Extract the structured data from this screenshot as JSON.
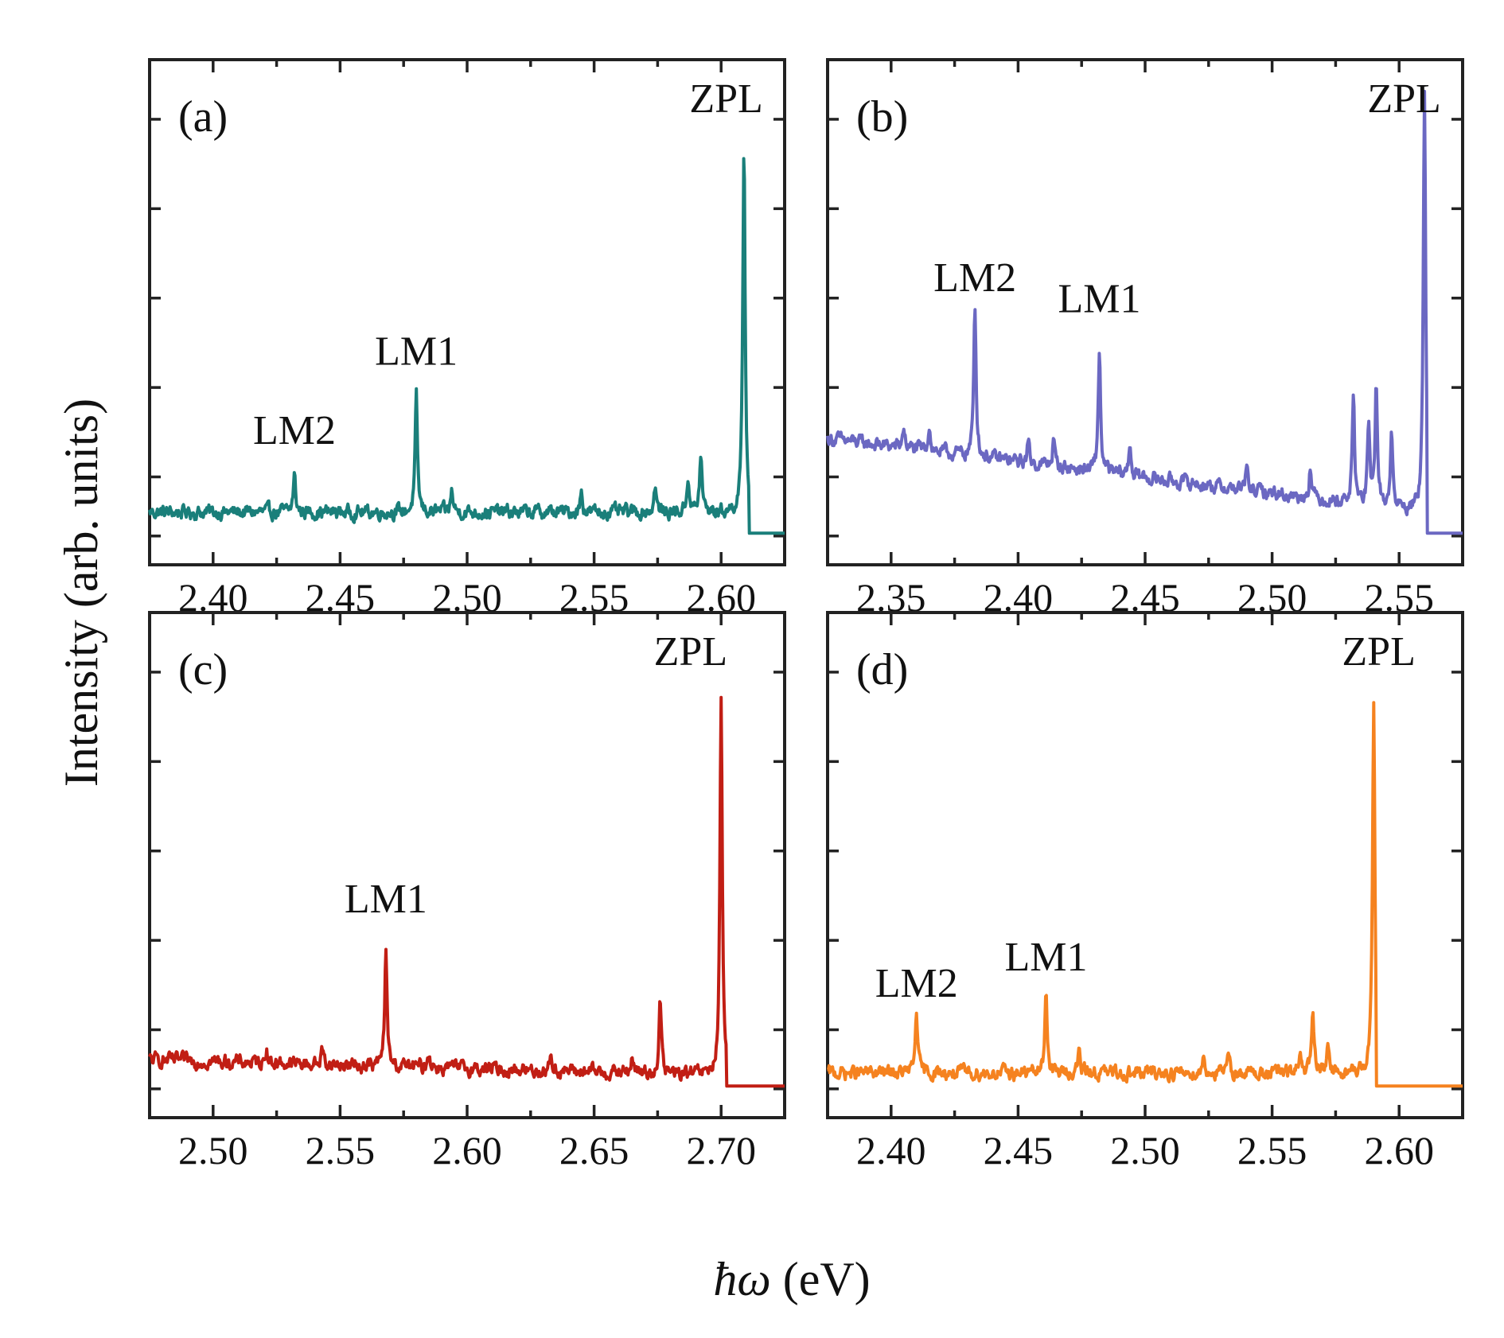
{
  "figure": {
    "ylabel": "Intensity (arb. units)",
    "xlabel_symbol": "ħω",
    "xlabel_unit": " (eV)"
  },
  "chart_data": [
    {
      "type": "line",
      "panel": "(a)",
      "color": "#1a7f7a",
      "xlim": [
        2.375,
        2.625
      ],
      "ylim": [
        -0.06,
        0.9
      ],
      "xticks": [
        "2.40",
        "2.45",
        "2.50",
        "2.55",
        "2.60"
      ],
      "xtick_values": [
        2.4,
        2.45,
        2.5,
        2.55,
        2.6
      ],
      "baseline": {
        "start": 0.04,
        "end": 0.04
      },
      "cutoff": 2.611,
      "peaks": [
        {
          "x": 2.432,
          "h": 0.07
        },
        {
          "x": 2.48,
          "h": 0.215
        },
        {
          "x": 2.494,
          "h": 0.04
        },
        {
          "x": 2.545,
          "h": 0.04
        },
        {
          "x": 2.574,
          "h": 0.05
        },
        {
          "x": 2.587,
          "h": 0.07
        },
        {
          "x": 2.592,
          "h": 0.11
        },
        {
          "x": 2.609,
          "h": 0.7
        }
      ],
      "annotations": [
        {
          "text": "LM2",
          "x": 2.432,
          "y": 0.17
        },
        {
          "text": "LM1",
          "x": 2.48,
          "y": 0.32
        },
        {
          "text": "ZPL",
          "x": 2.602,
          "y": 0.8
        }
      ]
    },
    {
      "type": "line",
      "panel": "(b)",
      "color": "#6b68c2",
      "xlim": [
        2.325,
        2.575
      ],
      "ylim": [
        -0.06,
        0.9
      ],
      "xticks": [
        "2.35",
        "2.40",
        "2.45",
        "2.50",
        "2.55"
      ],
      "xtick_values": [
        2.35,
        2.4,
        2.45,
        2.5,
        2.55
      ],
      "baseline": {
        "start": 0.18,
        "end": 0.04
      },
      "cutoff": 2.561,
      "peaks": [
        {
          "x": 2.355,
          "h": 0.04
        },
        {
          "x": 2.365,
          "h": 0.05
        },
        {
          "x": 2.383,
          "h": 0.29
        },
        {
          "x": 2.404,
          "h": 0.04
        },
        {
          "x": 2.414,
          "h": 0.05
        },
        {
          "x": 2.432,
          "h": 0.23
        },
        {
          "x": 2.444,
          "h": 0.06
        },
        {
          "x": 2.49,
          "h": 0.04
        },
        {
          "x": 2.515,
          "h": 0.06
        },
        {
          "x": 2.532,
          "h": 0.2
        },
        {
          "x": 2.538,
          "h": 0.14
        },
        {
          "x": 2.541,
          "h": 0.23
        },
        {
          "x": 2.547,
          "h": 0.14
        },
        {
          "x": 2.56,
          "h": 0.81
        }
      ],
      "annotations": [
        {
          "text": "LM2",
          "x": 2.383,
          "y": 0.46
        },
        {
          "text": "LM1",
          "x": 2.432,
          "y": 0.42
        },
        {
          "text": "ZPL",
          "x": 2.552,
          "y": 0.8
        }
      ]
    },
    {
      "type": "line",
      "panel": "(c)",
      "color": "#c11e14",
      "xlim": [
        2.475,
        2.725
      ],
      "ylim": [
        -0.06,
        0.9
      ],
      "xticks": [
        "2.50",
        "2.55",
        "2.60",
        "2.65",
        "2.70"
      ],
      "xtick_values": [
        2.5,
        2.55,
        2.6,
        2.65,
        2.7
      ],
      "baseline": {
        "start": 0.05,
        "end": 0.02
      },
      "cutoff": 2.702,
      "peaks": [
        {
          "x": 2.521,
          "h": 0.03
        },
        {
          "x": 2.543,
          "h": 0.03
        },
        {
          "x": 2.568,
          "h": 0.22
        },
        {
          "x": 2.585,
          "h": 0.03
        },
        {
          "x": 2.633,
          "h": 0.03
        },
        {
          "x": 2.665,
          "h": 0.03
        },
        {
          "x": 2.676,
          "h": 0.14
        },
        {
          "x": 2.7,
          "h": 0.7
        }
      ],
      "annotations": [
        {
          "text": "LM1",
          "x": 2.568,
          "y": 0.33
        },
        {
          "text": "ZPL",
          "x": 2.688,
          "y": 0.8
        }
      ]
    },
    {
      "type": "line",
      "panel": "(d)",
      "color": "#f5821f",
      "xlim": [
        2.375,
        2.625
      ],
      "ylim": [
        -0.06,
        0.9
      ],
      "xticks": [
        "2.40",
        "2.45",
        "2.50",
        "2.55",
        "2.60"
      ],
      "xtick_values": [
        2.4,
        2.45,
        2.5,
        2.55,
        2.6
      ],
      "baseline": {
        "start": 0.025,
        "end": 0.025
      },
      "cutoff": 2.591,
      "peaks": [
        {
          "x": 2.41,
          "h": 0.12
        },
        {
          "x": 2.461,
          "h": 0.16
        },
        {
          "x": 2.474,
          "h": 0.04
        },
        {
          "x": 2.523,
          "h": 0.03
        },
        {
          "x": 2.533,
          "h": 0.03
        },
        {
          "x": 2.561,
          "h": 0.04
        },
        {
          "x": 2.566,
          "h": 0.11
        },
        {
          "x": 2.572,
          "h": 0.06
        },
        {
          "x": 2.59,
          "h": 0.7
        }
      ],
      "annotations": [
        {
          "text": "LM2",
          "x": 2.41,
          "y": 0.17
        },
        {
          "text": "LM1",
          "x": 2.461,
          "y": 0.22
        },
        {
          "text": "ZPL",
          "x": 2.592,
          "y": 0.8
        }
      ]
    }
  ]
}
